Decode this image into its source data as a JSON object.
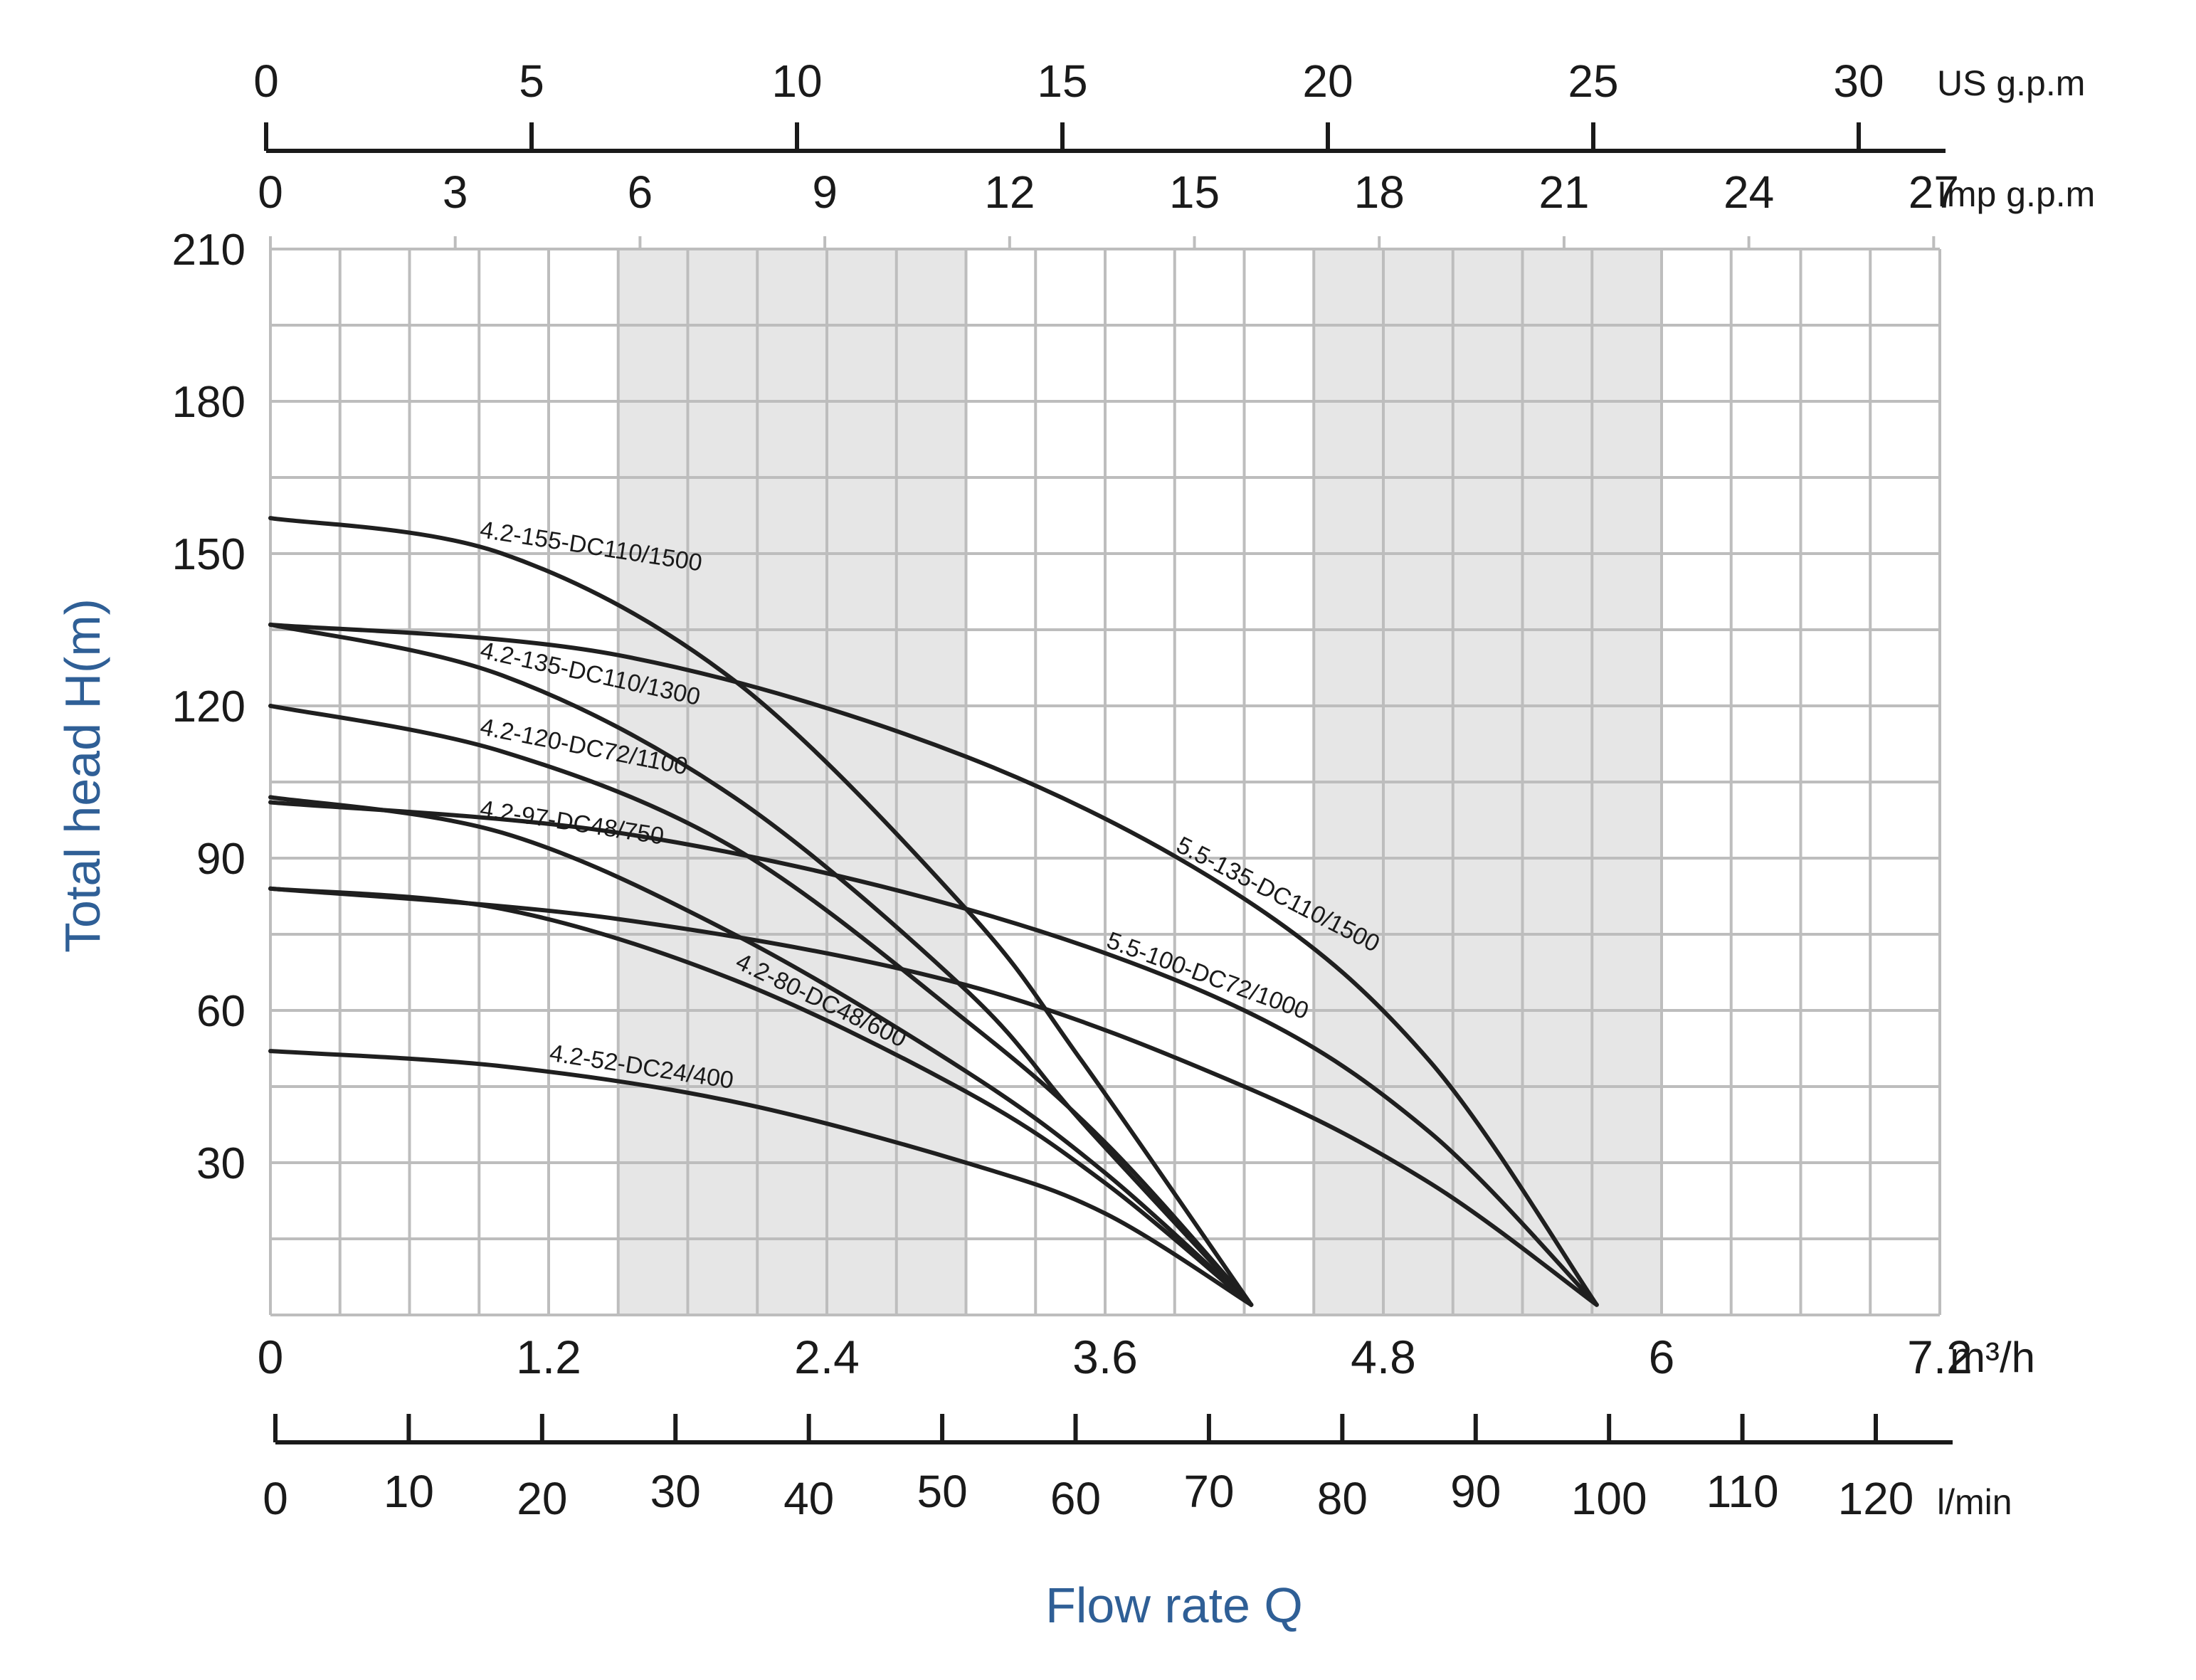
{
  "chart_data": {
    "type": "line",
    "xlabel": "Flow rate Q",
    "ylabel": "Total head H(m)",
    "units": {
      "m3h": "m³/h",
      "lmin": "l/min",
      "usgpm": "US g.p.m",
      "impgpm": "Imp g.p.m"
    },
    "xlim": [
      0,
      7.2
    ],
    "ylim": [
      0,
      210
    ],
    "x_ticks_m3h": [
      "0",
      "1.2",
      "2.4",
      "3.6",
      "4.8",
      "6",
      "7.2"
    ],
    "x_ticks_lmin": [
      "0",
      "10",
      "20",
      "30",
      "40",
      "50",
      "60",
      "70",
      "80",
      "90",
      "100",
      "110",
      "120"
    ],
    "x_ticks_usgpm": [
      "0",
      "5",
      "10",
      "15",
      "20",
      "25",
      "30"
    ],
    "x_ticks_impgpm": [
      "0",
      "3",
      "6",
      "9",
      "12",
      "15",
      "18",
      "21",
      "24",
      "27"
    ],
    "y_ticks": [
      "30",
      "60",
      "90",
      "120",
      "150",
      "180",
      "210"
    ],
    "grid": true,
    "shaded_bands_m3h": [
      [
        1.5,
        3.0
      ],
      [
        4.5,
        6.0
      ]
    ],
    "line_color": "#1f1f1f",
    "grid_color": "#bdbdbd",
    "band_color": "#e6e6e6",
    "axis_title_color": "#2f5f96",
    "series": [
      {
        "name": "4.2-155-DC110/1500",
        "x": [
          0,
          1.0,
          2.0,
          3.0,
          3.5,
          4.23
        ],
        "y": [
          157,
          150,
          125,
          80,
          50,
          2
        ]
      },
      {
        "name": "5.5-135-DC110/1500",
        "x": [
          0,
          1.5,
          3.0,
          4.2,
          5.0,
          5.72
        ],
        "y": [
          136,
          130,
          110,
          82,
          50,
          2
        ]
      },
      {
        "name": "4.2-135-DC110/1300",
        "x": [
          0,
          1.0,
          2.0,
          3.0,
          3.5,
          4.23
        ],
        "y": [
          136,
          126,
          102,
          64,
          38,
          2
        ]
      },
      {
        "name": "4.2-120-DC72/1100",
        "x": [
          0,
          1.0,
          2.0,
          3.0,
          3.6,
          4.23
        ],
        "y": [
          120,
          111,
          92,
          58,
          34,
          2
        ]
      },
      {
        "name": "5.5-100-DC72/1000",
        "x": [
          0,
          1.5,
          3.0,
          4.2,
          5.0,
          5.72
        ],
        "y": [
          101,
          95,
          80,
          60,
          36,
          2
        ]
      },
      {
        "name": "4.2-97-DC48/750",
        "x": [
          0,
          1.0,
          2.0,
          3.0,
          3.6,
          4.23
        ],
        "y": [
          102,
          95,
          75,
          48,
          28,
          2
        ]
      },
      {
        "name": "4.2-80-DC48/600",
        "x": [
          0,
          1.0,
          2.0,
          3.0,
          3.6,
          4.23
        ],
        "y": [
          84,
          80,
          66,
          44,
          26,
          2
        ]
      },
      {
        "name": "4.2-52-DC24/400",
        "x": [
          0,
          1.0,
          2.0,
          3.0,
          3.6,
          4.23
        ],
        "y": [
          52,
          49,
          42,
          30,
          20,
          2
        ]
      },
      {
        "name": "",
        "x": [
          0,
          1.5,
          3.0,
          4.2,
          5.0,
          5.72
        ],
        "y": [
          84,
          78,
          65,
          45,
          26,
          2
        ]
      }
    ]
  }
}
